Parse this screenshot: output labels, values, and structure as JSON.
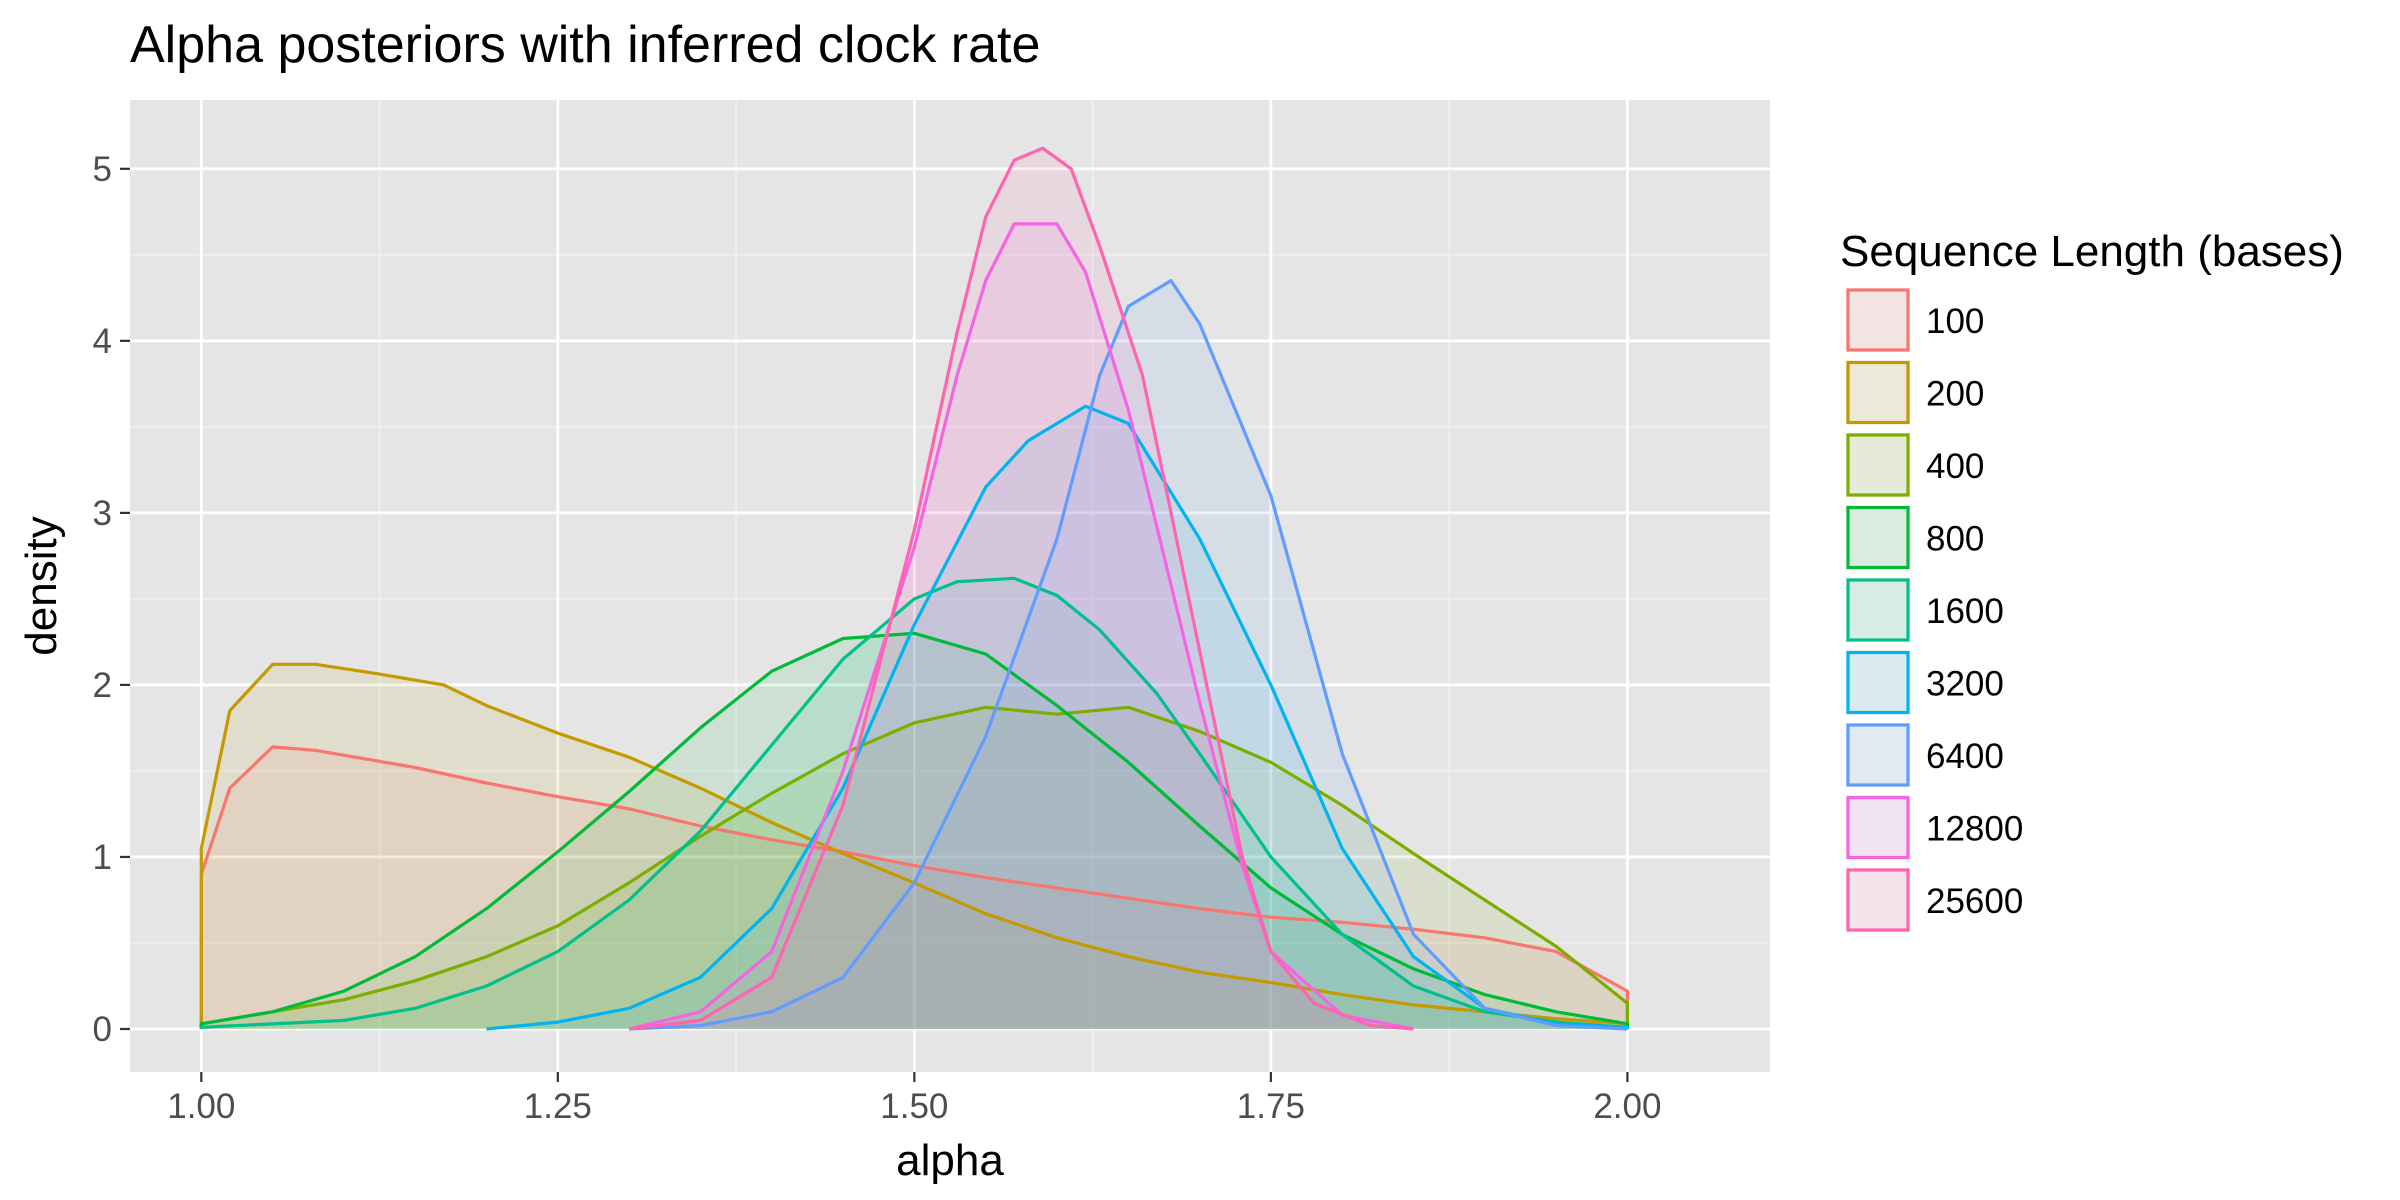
{
  "chart_data": {
    "type": "area",
    "subtype": "density",
    "title": "Alpha posteriors with inferred clock rate",
    "xlabel": "alpha",
    "ylabel": "density",
    "xlim": [
      0.95,
      2.1
    ],
    "ylim": [
      -0.25,
      5.4
    ],
    "x_ticks": [
      1.0,
      1.25,
      1.5,
      1.75,
      2.0
    ],
    "x_tick_labels": [
      "1.00",
      "1.25",
      "1.50",
      "1.75",
      "2.00"
    ],
    "y_ticks": [
      0,
      1,
      2,
      3,
      4,
      5
    ],
    "y_tick_labels": [
      "0",
      "1",
      "2",
      "3",
      "4",
      "5"
    ],
    "grid": true,
    "background": "#e5e5e5",
    "legend": {
      "title": "Sequence Length (bases)",
      "position": "right"
    },
    "series": [
      {
        "name": "100",
        "color": "#F8766D",
        "x": [
          1.0,
          1.0,
          1.02,
          1.05,
          1.08,
          1.15,
          1.2,
          1.25,
          1.3,
          1.35,
          1.4,
          1.45,
          1.5,
          1.55,
          1.6,
          1.65,
          1.7,
          1.75,
          1.8,
          1.85,
          1.9,
          1.95,
          2.0,
          2.0
        ],
        "y": [
          0,
          0.9,
          1.4,
          1.64,
          1.62,
          1.52,
          1.43,
          1.35,
          1.28,
          1.18,
          1.1,
          1.03,
          0.95,
          0.88,
          0.82,
          0.76,
          0.7,
          0.65,
          0.62,
          0.58,
          0.53,
          0.45,
          0.22,
          0
        ]
      },
      {
        "name": "200",
        "color": "#C49A00",
        "x": [
          1.0,
          1.0,
          1.02,
          1.05,
          1.08,
          1.12,
          1.17,
          1.2,
          1.25,
          1.3,
          1.35,
          1.4,
          1.45,
          1.5,
          1.55,
          1.6,
          1.65,
          1.7,
          1.75,
          1.8,
          1.85,
          1.9,
          1.95,
          2.0
        ],
        "y": [
          0,
          1.05,
          1.85,
          2.12,
          2.12,
          2.07,
          2.0,
          1.88,
          1.72,
          1.58,
          1.4,
          1.2,
          1.02,
          0.85,
          0.67,
          0.53,
          0.42,
          0.33,
          0.27,
          0.2,
          0.14,
          0.1,
          0.06,
          0.03
        ]
      },
      {
        "name": "400",
        "color": "#7CAE00",
        "x": [
          1.0,
          1.05,
          1.1,
          1.15,
          1.2,
          1.25,
          1.3,
          1.35,
          1.4,
          1.45,
          1.5,
          1.55,
          1.6,
          1.65,
          1.7,
          1.75,
          1.8,
          1.85,
          1.9,
          1.95,
          2.0
        ],
        "y": [
          0.03,
          0.1,
          0.17,
          0.28,
          0.42,
          0.6,
          0.85,
          1.12,
          1.37,
          1.6,
          1.78,
          1.87,
          1.83,
          1.87,
          1.73,
          1.55,
          1.3,
          1.02,
          0.75,
          0.48,
          0.15
        ]
      },
      {
        "name": "800",
        "color": "#00BA38",
        "x": [
          1.0,
          1.05,
          1.1,
          1.15,
          1.2,
          1.25,
          1.3,
          1.35,
          1.4,
          1.45,
          1.5,
          1.55,
          1.6,
          1.65,
          1.7,
          1.75,
          1.8,
          1.85,
          1.9,
          1.95,
          2.0
        ],
        "y": [
          0.03,
          0.1,
          0.22,
          0.42,
          0.7,
          1.03,
          1.38,
          1.75,
          2.08,
          2.27,
          2.3,
          2.18,
          1.88,
          1.55,
          1.18,
          0.82,
          0.55,
          0.35,
          0.2,
          0.1,
          0.03
        ]
      },
      {
        "name": "1600",
        "color": "#00C08B",
        "x": [
          1.0,
          1.1,
          1.15,
          1.2,
          1.25,
          1.3,
          1.35,
          1.4,
          1.45,
          1.5,
          1.53,
          1.57,
          1.6,
          1.63,
          1.67,
          1.7,
          1.75,
          1.8,
          1.85,
          1.9,
          1.95,
          2.0
        ],
        "y": [
          0.01,
          0.05,
          0.12,
          0.25,
          0.45,
          0.75,
          1.15,
          1.65,
          2.15,
          2.5,
          2.6,
          2.62,
          2.52,
          2.32,
          1.95,
          1.6,
          1.0,
          0.55,
          0.25,
          0.1,
          0.04,
          0.01
        ]
      },
      {
        "name": "3200",
        "color": "#00B4EF",
        "x": [
          1.2,
          1.25,
          1.3,
          1.35,
          1.4,
          1.45,
          1.5,
          1.55,
          1.58,
          1.62,
          1.65,
          1.7,
          1.75,
          1.8,
          1.85,
          1.9,
          1.95,
          2.0
        ],
        "y": [
          0.0,
          0.04,
          0.12,
          0.3,
          0.7,
          1.4,
          2.35,
          3.15,
          3.42,
          3.62,
          3.52,
          2.85,
          2.0,
          1.05,
          0.42,
          0.12,
          0.03,
          0.01
        ]
      },
      {
        "name": "6400",
        "color": "#619CFF",
        "x": [
          1.3,
          1.35,
          1.4,
          1.45,
          1.5,
          1.55,
          1.6,
          1.63,
          1.65,
          1.68,
          1.7,
          1.75,
          1.8,
          1.85,
          1.9,
          1.95,
          2.0
        ],
        "y": [
          0.0,
          0.02,
          0.1,
          0.3,
          0.85,
          1.7,
          2.85,
          3.8,
          4.2,
          4.35,
          4.1,
          3.1,
          1.6,
          0.55,
          0.12,
          0.02,
          0.0
        ]
      },
      {
        "name": "12800",
        "color": "#F564E3",
        "x": [
          1.3,
          1.35,
          1.4,
          1.45,
          1.5,
          1.53,
          1.55,
          1.57,
          1.6,
          1.62,
          1.65,
          1.7,
          1.73,
          1.75,
          1.8,
          1.85
        ],
        "y": [
          0.0,
          0.1,
          0.45,
          1.5,
          2.8,
          3.8,
          4.35,
          4.68,
          4.68,
          4.4,
          3.6,
          1.9,
          0.95,
          0.45,
          0.08,
          0.0
        ]
      },
      {
        "name": "25600",
        "color": "#FF64B0",
        "x": [
          1.3,
          1.35,
          1.4,
          1.45,
          1.5,
          1.53,
          1.55,
          1.57,
          1.59,
          1.61,
          1.63,
          1.66,
          1.7,
          1.73,
          1.75,
          1.78,
          1.82,
          1.85
        ],
        "y": [
          0.0,
          0.05,
          0.3,
          1.3,
          2.9,
          4.05,
          4.72,
          5.05,
          5.12,
          5.0,
          4.55,
          3.8,
          2.2,
          1.0,
          0.45,
          0.15,
          0.02,
          0.0
        ]
      }
    ]
  }
}
